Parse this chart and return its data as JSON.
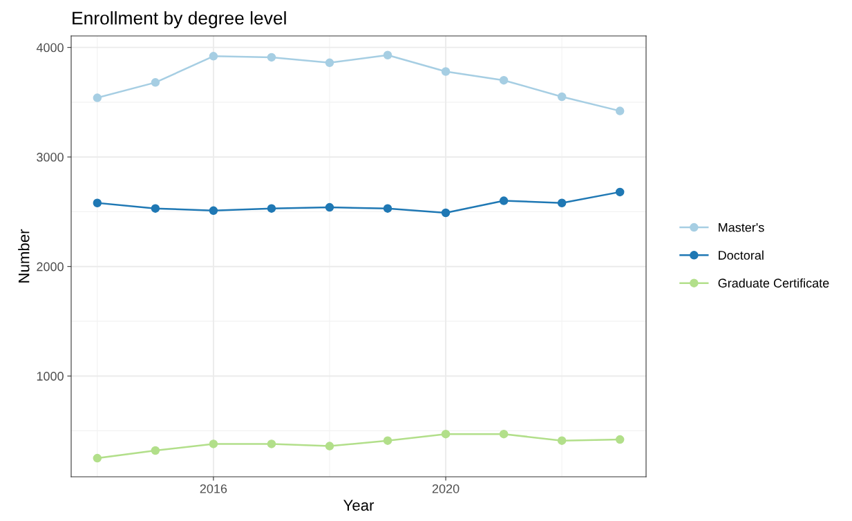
{
  "chart_data": {
    "type": "line",
    "title": "Enrollment by degree level",
    "xlabel": "Year",
    "ylabel": "Number",
    "x": [
      2014,
      2015,
      2016,
      2017,
      2018,
      2019,
      2020,
      2021,
      2022,
      2023
    ],
    "series": [
      {
        "name": "Master's",
        "color": "#a6cee3",
        "values": [
          3540,
          3680,
          3920,
          3910,
          3860,
          3930,
          3780,
          3700,
          3550,
          3420
        ]
      },
      {
        "name": "Doctoral",
        "color": "#1f78b4",
        "values": [
          2580,
          2530,
          2510,
          2530,
          2540,
          2530,
          2490,
          2600,
          2580,
          2680
        ]
      },
      {
        "name": "Graduate Certificate",
        "color": "#b2df8a",
        "values": [
          250,
          320,
          380,
          380,
          360,
          410,
          470,
          470,
          410,
          420
        ]
      }
    ],
    "xlim": [
      2013.55,
      2023.45
    ],
    "ylim": [
      80,
      4105
    ],
    "xticks": [
      2016,
      2020
    ],
    "yticks": [
      1000,
      2000,
      3000,
      4000
    ],
    "grid": true,
    "legend": "right",
    "marker": "circle",
    "line_style": "solid"
  }
}
